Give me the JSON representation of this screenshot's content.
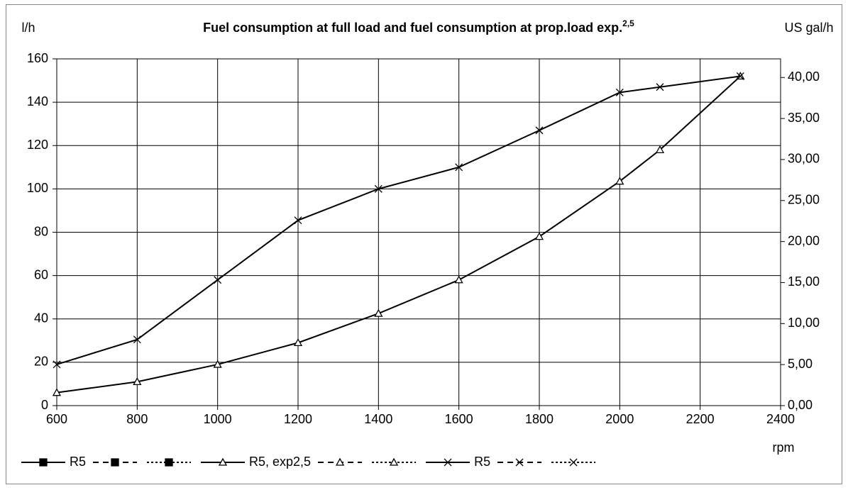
{
  "chart_data": {
    "type": "line",
    "title": "Fuel consumption at full load and fuel consumption at prop.load exp.",
    "title_superscript": "2,5",
    "y_label": "l/h",
    "y2_label": "US gal/h",
    "x_label": "rpm",
    "xlim": [
      600,
      2400
    ],
    "xticks": [
      600,
      800,
      1000,
      1200,
      1400,
      1600,
      1800,
      2000,
      2200,
      2400
    ],
    "ylim": [
      0,
      160
    ],
    "yticks": [
      0,
      20,
      40,
      60,
      80,
      100,
      120,
      140,
      160
    ],
    "y2lim": [
      0,
      42.27
    ],
    "y2ticks": [
      {
        "value": 0,
        "label": "0,00"
      },
      {
        "value": 5,
        "label": "5,00"
      },
      {
        "value": 10,
        "label": "10,00"
      },
      {
        "value": 15,
        "label": "15,00"
      },
      {
        "value": 20,
        "label": "20,00"
      },
      {
        "value": 25,
        "label": "25,00"
      },
      {
        "value": 30,
        "label": "30,00"
      },
      {
        "value": 35,
        "label": "35,00"
      },
      {
        "value": 40,
        "label": "40,00"
      }
    ],
    "grid": true,
    "series": [
      {
        "name": "R5, exp2,5",
        "color": "#000000",
        "marker": "triangle",
        "x": [
          600,
          800,
          1000,
          1200,
          1400,
          1600,
          1800,
          2000,
          2100,
          2300
        ],
        "values": [
          6,
          11,
          19,
          29,
          42.5,
          58,
          78,
          103.5,
          118,
          152
        ]
      },
      {
        "name": "R5",
        "color": "#000000",
        "marker": "cross",
        "x": [
          600,
          800,
          1000,
          1200,
          1400,
          1600,
          1800,
          2000,
          2100,
          2300
        ],
        "values": [
          19,
          30.5,
          58,
          85.5,
          100,
          110,
          127,
          144.5,
          147,
          152
        ]
      }
    ],
    "legend": [
      {
        "name": "R5",
        "marker": "square",
        "dash": "solid"
      },
      {
        "marker": "square",
        "dash": "dashed"
      },
      {
        "marker": "square",
        "dash": "dotted"
      },
      {
        "name": "R5, exp2,5",
        "marker": "triangle",
        "dash": "solid"
      },
      {
        "marker": "triangle",
        "dash": "dashed"
      },
      {
        "marker": "triangle",
        "dash": "dotted"
      },
      {
        "name": "R5",
        "marker": "cross",
        "dash": "solid"
      },
      {
        "marker": "cross",
        "dash": "dashed"
      },
      {
        "marker": "cross",
        "dash": "dotted"
      }
    ]
  }
}
